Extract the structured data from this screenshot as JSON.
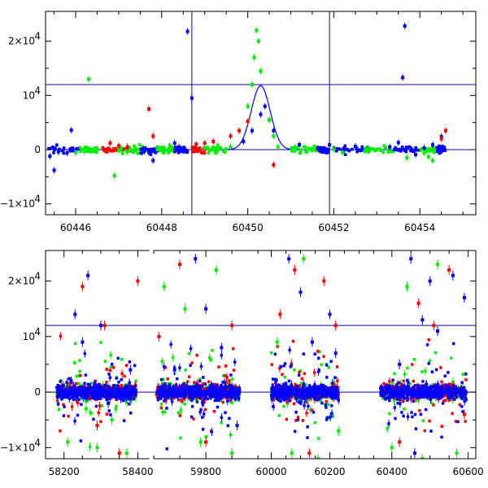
{
  "colors": {
    "blue": "#0000ff",
    "green": "#00ee00",
    "red": "#ff0000",
    "refline": "#0000cc",
    "axis": "#000000"
  },
  "chart_data": [
    {
      "type": "scatter",
      "title": "",
      "xlabel": "",
      "ylabel": "",
      "xlim": [
        60445.3,
        60455.3
      ],
      "ylim": [
        -12000,
        25500
      ],
      "x_ticks": [
        {
          "value": 60446,
          "label": "60446"
        },
        {
          "value": 60448,
          "label": "60448"
        },
        {
          "value": 60450,
          "label": "60450"
        },
        {
          "value": 60452,
          "label": "60452"
        },
        {
          "value": 60454,
          "label": "60454"
        }
      ],
      "y_ticks": [
        {
          "value": -10000,
          "label": "−1×10",
          "exp": "4"
        },
        {
          "value": 0,
          "label": "0",
          "exp": ""
        },
        {
          "value": 10000,
          "label": "10",
          "exp": "4"
        },
        {
          "value": 20000,
          "label": "2×10",
          "exp": "4"
        }
      ],
      "hlines": [
        0,
        12000
      ],
      "vlines": [
        60448.7,
        60451.9
      ],
      "fit_curve": {
        "peak_x": 60450.3,
        "peak_y": 11800,
        "width": 0.22
      },
      "series": [
        {
          "color": "blue",
          "points": [
            [
              60445.4,
              -1200
            ],
            [
              60445.5,
              -3800
            ],
            [
              60445.6,
              -400
            ],
            [
              60445.8,
              -600
            ],
            [
              60445.9,
              3600
            ],
            [
              60446.0,
              -500
            ],
            [
              60447.6,
              -300
            ],
            [
              60447.7,
              -500
            ],
            [
              60447.8,
              -2000
            ],
            [
              60448.3,
              1200
            ],
            [
              60448.4,
              500
            ],
            [
              60448.6,
              21800
            ],
            [
              60448.7,
              9500
            ],
            [
              60449.9,
              1500
            ],
            [
              60450.1,
              3500
            ],
            [
              60450.3,
              6500
            ],
            [
              60450.4,
              8000
            ],
            [
              60450.5,
              5500
            ],
            [
              60450.6,
              3500
            ],
            [
              60451.2,
              900
            ],
            [
              60451.9,
              900
            ],
            [
              60452.5,
              600
            ],
            [
              60452.8,
              200
            ],
            [
              60453.3,
              500
            ],
            [
              60453.5,
              1300
            ],
            [
              60453.6,
              13300
            ],
            [
              60453.65,
              22800
            ],
            [
              60453.9,
              -900
            ],
            [
              60454.1,
              300
            ],
            [
              60454.3,
              900
            ],
            [
              60454.5,
              2400
            ]
          ]
        },
        {
          "color": "green",
          "points": [
            [
              60446.0,
              -500
            ],
            [
              60446.2,
              -300
            ],
            [
              60446.3,
              13000
            ],
            [
              60446.5,
              200
            ],
            [
              60446.9,
              -4800
            ],
            [
              60447.0,
              -200
            ],
            [
              60447.2,
              -400
            ],
            [
              60447.4,
              100
            ],
            [
              60448.0,
              300
            ],
            [
              60448.2,
              500
            ],
            [
              60449.0,
              300
            ],
            [
              60449.3,
              800
            ],
            [
              60449.6,
              500
            ],
            [
              60450.0,
              8000
            ],
            [
              60450.1,
              12000
            ],
            [
              60450.15,
              17000
            ],
            [
              60450.2,
              22000
            ],
            [
              60450.25,
              20000
            ],
            [
              60450.3,
              14500
            ],
            [
              60450.5,
              5500
            ],
            [
              60450.6,
              2500
            ],
            [
              60450.7,
              500
            ],
            [
              60451.1,
              500
            ],
            [
              60452.0,
              100
            ],
            [
              60452.2,
              -500
            ],
            [
              60452.8,
              100
            ],
            [
              60453.2,
              400
            ],
            [
              60453.7,
              -1500
            ],
            [
              60454.2,
              -1300
            ],
            [
              60454.3,
              -2000
            ]
          ]
        },
        {
          "color": "red",
          "points": [
            [
              60446.8,
              1200
            ],
            [
              60447.0,
              700
            ],
            [
              60447.2,
              500
            ],
            [
              60447.7,
              7500
            ],
            [
              60447.8,
              2500
            ],
            [
              60448.8,
              1000
            ],
            [
              60449.0,
              1200
            ],
            [
              60449.2,
              1500
            ],
            [
              60449.6,
              2500
            ],
            [
              60449.8,
              3500
            ],
            [
              60450.0,
              5200
            ],
            [
              60450.6,
              -2800
            ],
            [
              60454.5,
              2000
            ],
            [
              60454.6,
              3500
            ]
          ]
        }
      ]
    },
    {
      "type": "scatter",
      "title": "",
      "xlabel": "",
      "ylabel": "",
      "x_axis": "broken",
      "ylim": [
        -12000,
        25500
      ],
      "segments": [
        {
          "xlim": [
            58150,
            58430
          ],
          "dense_x": [
            58180,
            58395
          ]
        },
        {
          "xlim": [
            59700,
            59920
          ],
          "dense_x": [
            59705,
            59865
          ]
        },
        {
          "xlim": [
            59990,
            60360
          ],
          "dense_x": [
            60000,
            60230
          ]
        },
        {
          "xlim": [
            60360,
            60620
          ],
          "dense_x": [
            60370,
            60595
          ]
        }
      ],
      "x_ticks": [
        {
          "value": 58200,
          "label": "58200"
        },
        {
          "value": 58400,
          "label": "58400"
        },
        {
          "value": 59800,
          "label": "59800"
        },
        {
          "value": 60000,
          "label": "60000"
        },
        {
          "value": 60200,
          "label": "60200"
        },
        {
          "value": 60400,
          "label": "60400"
        },
        {
          "value": 60600,
          "label": "60600"
        }
      ],
      "y_ticks": [
        {
          "value": -10000,
          "label": "−1×10",
          "exp": "4"
        },
        {
          "value": 0,
          "label": "0",
          "exp": ""
        },
        {
          "value": 10000,
          "label": "10",
          "exp": "4"
        },
        {
          "value": 20000,
          "label": "2×10",
          "exp": "4"
        }
      ],
      "hlines": [
        0,
        12000
      ],
      "series": [
        {
          "color": "blue",
          "points": [
            [
              58230,
              14000
            ],
            [
              58265,
              21000
            ],
            [
              58300,
              12000
            ],
            [
              58250,
              9000
            ],
            [
              58320,
              -2000
            ],
            [
              58380,
              4000
            ],
            [
              59740,
              4000
            ],
            [
              59780,
              24000
            ],
            [
              59800,
              15000
            ],
            [
              59830,
              8000
            ],
            [
              59860,
              -6000
            ],
            [
              60060,
              24000
            ],
            [
              60100,
              18000
            ],
            [
              60140,
              9000
            ],
            [
              60200,
              14000
            ],
            [
              60220,
              7000
            ],
            [
              60420,
              5000
            ],
            [
              60450,
              24000
            ],
            [
              60480,
              13000
            ],
            [
              60500,
              20000
            ],
            [
              60520,
              11000
            ],
            [
              60560,
              21000
            ],
            [
              60590,
              17000
            ],
            [
              60460,
              -11000
            ]
          ]
        },
        {
          "color": "green",
          "points": [
            [
              58210,
              -9000
            ],
            [
              58260,
              -3000
            ],
            [
              58290,
              -10000
            ],
            [
              58330,
              -5000
            ],
            [
              58370,
              -11000
            ],
            [
              59720,
              19000
            ],
            [
              59760,
              15000
            ],
            [
              59790,
              -9000
            ],
            [
              59820,
              22000
            ],
            [
              59850,
              -11000
            ],
            [
              60020,
              9000
            ],
            [
              60070,
              -11000
            ],
            [
              60110,
              24000
            ],
            [
              60160,
              -12000
            ],
            [
              60230,
              -7000
            ],
            [
              60400,
              -10000
            ],
            [
              60440,
              19000
            ],
            [
              60480,
              -12000
            ],
            [
              60520,
              23000
            ],
            [
              60570,
              -11000
            ]
          ]
        },
        {
          "color": "red",
          "points": [
            [
              58250,
              19000
            ],
            [
              58290,
              -6000
            ],
            [
              58310,
              12000
            ],
            [
              58350,
              -11000
            ],
            [
              58400,
              20000
            ],
            [
              59710,
              10000
            ],
            [
              59750,
              23000
            ],
            [
              59800,
              -9000
            ],
            [
              59850,
              12000
            ],
            [
              60030,
              14000
            ],
            [
              60080,
              22000
            ],
            [
              60130,
              -11000
            ],
            [
              60180,
              20000
            ],
            [
              60220,
              12000
            ],
            [
              60420,
              -9000
            ],
            [
              60470,
              16000
            ],
            [
              60510,
              12000
            ],
            [
              60550,
              22000
            ],
            [
              60590,
              -4000
            ]
          ]
        }
      ]
    }
  ]
}
